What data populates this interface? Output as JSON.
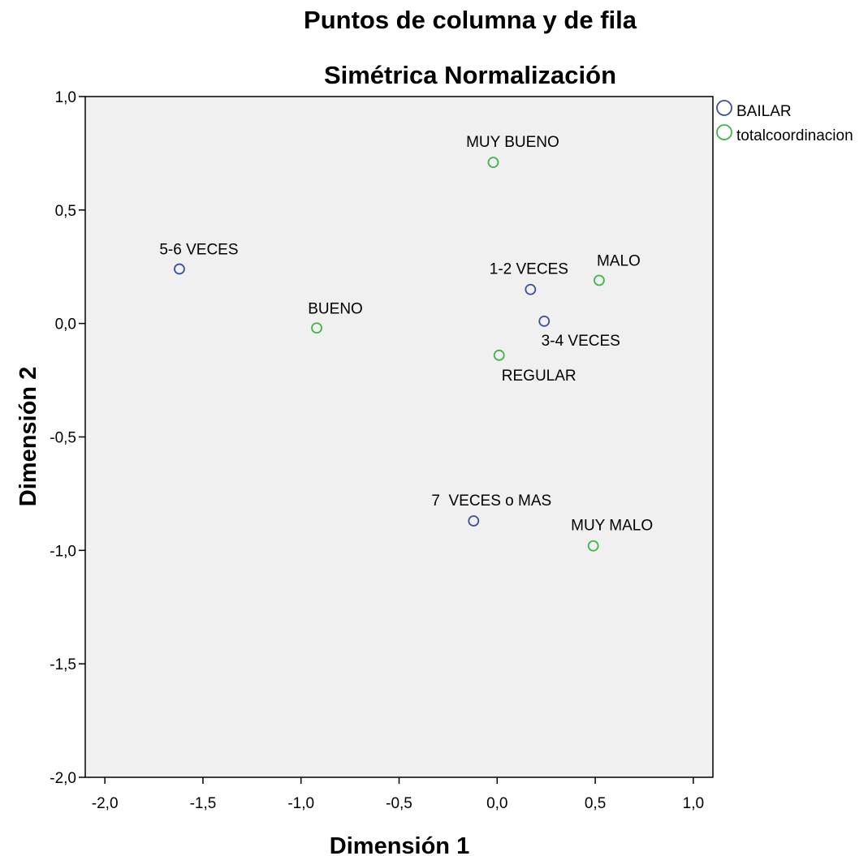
{
  "chart_data": {
    "type": "scatter",
    "title": "Puntos de columna y de fila",
    "subtitle": "Simétrica Normalización",
    "xlabel": "Dimensión 1",
    "ylabel": "Dimensión 2",
    "xlim": [
      -2.1,
      1.1
    ],
    "ylim": [
      -2.0,
      1.0
    ],
    "xticks": [
      -2.0,
      -1.5,
      -1.0,
      -0.5,
      0.0,
      0.5,
      1.0
    ],
    "yticks": [
      1.0,
      0.5,
      0.0,
      -0.5,
      -1.0,
      -1.5,
      -2.0
    ],
    "xtick_labels": [
      "-2,0",
      "-1,5",
      "-1,0",
      "-0,5",
      "0,0",
      "0,5",
      "1,0"
    ],
    "ytick_labels": [
      "1,0",
      "0,5",
      "0,0",
      "-0,5",
      "-1,0",
      "-1,5",
      "-2,0"
    ],
    "grid": false,
    "legend_position": "outside-top-right",
    "plot_background": "#f0f0f0",
    "series": [
      {
        "name": "BAILAR",
        "color": "#3e4f9b",
        "marker": "open-circle",
        "points": [
          {
            "label": "5-6 VECES",
            "x": -1.62,
            "y": 0.24
          },
          {
            "label": "1-2 VECES",
            "x": 0.17,
            "y": 0.15
          },
          {
            "label": "3-4 VECES",
            "x": 0.24,
            "y": 0.01
          },
          {
            "label": "7  VECES o MAS",
            "x": -0.12,
            "y": -0.87
          }
        ]
      },
      {
        "name": "totalcoordinacion",
        "color": "#3fb54a",
        "marker": "open-circle",
        "points": [
          {
            "label": "MUY BUENO",
            "x": -0.02,
            "y": 0.71
          },
          {
            "label": "MALO",
            "x": 0.52,
            "y": 0.19
          },
          {
            "label": "BUENO",
            "x": -0.92,
            "y": -0.02
          },
          {
            "label": "REGULAR",
            "x": 0.01,
            "y": -0.14
          },
          {
            "label": "MUY MALO",
            "x": 0.49,
            "y": -0.98
          }
        ]
      }
    ]
  }
}
